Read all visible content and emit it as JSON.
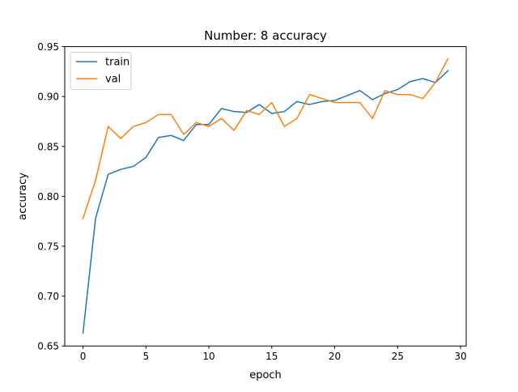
{
  "chart_data": {
    "type": "line",
    "title": "Number: 8 accuracy",
    "xlabel": "epoch",
    "ylabel": "accuracy",
    "xlim": [
      -1.45,
      30.45
    ],
    "ylim": [
      0.65,
      0.95
    ],
    "x_ticks": [
      0,
      5,
      10,
      15,
      20,
      25,
      30
    ],
    "x_tick_labels": [
      "0",
      "5",
      "10",
      "15",
      "20",
      "25",
      "30"
    ],
    "y_ticks": [
      0.65,
      0.7,
      0.75,
      0.8,
      0.85,
      0.9,
      0.95
    ],
    "y_tick_labels": [
      "0.65",
      "0.70",
      "0.75",
      "0.80",
      "0.85",
      "0.90",
      "0.95"
    ],
    "grid": false,
    "legend_position": "top-left",
    "x": [
      0,
      1,
      2,
      3,
      4,
      5,
      6,
      7,
      8,
      9,
      10,
      11,
      12,
      13,
      14,
      15,
      16,
      17,
      18,
      19,
      20,
      21,
      22,
      23,
      24,
      25,
      26,
      27,
      28,
      29
    ],
    "series": [
      {
        "name": "train",
        "color": "#1f77b4",
        "values": [
          0.663,
          0.778,
          0.822,
          0.827,
          0.83,
          0.839,
          0.859,
          0.861,
          0.856,
          0.872,
          0.872,
          0.888,
          0.885,
          0.884,
          0.892,
          0.883,
          0.885,
          0.895,
          0.892,
          0.895,
          0.896,
          0.901,
          0.906,
          0.897,
          0.903,
          0.907,
          0.915,
          0.918,
          0.914,
          0.926
        ]
      },
      {
        "name": "val",
        "color": "#ff7f0e",
        "values": [
          0.778,
          0.816,
          0.87,
          0.858,
          0.87,
          0.874,
          0.882,
          0.882,
          0.862,
          0.874,
          0.87,
          0.878,
          0.866,
          0.886,
          0.882,
          0.894,
          0.87,
          0.878,
          0.902,
          0.898,
          0.894,
          0.894,
          0.894,
          0.878,
          0.906,
          0.902,
          0.902,
          0.898,
          0.914,
          0.938
        ]
      }
    ]
  }
}
